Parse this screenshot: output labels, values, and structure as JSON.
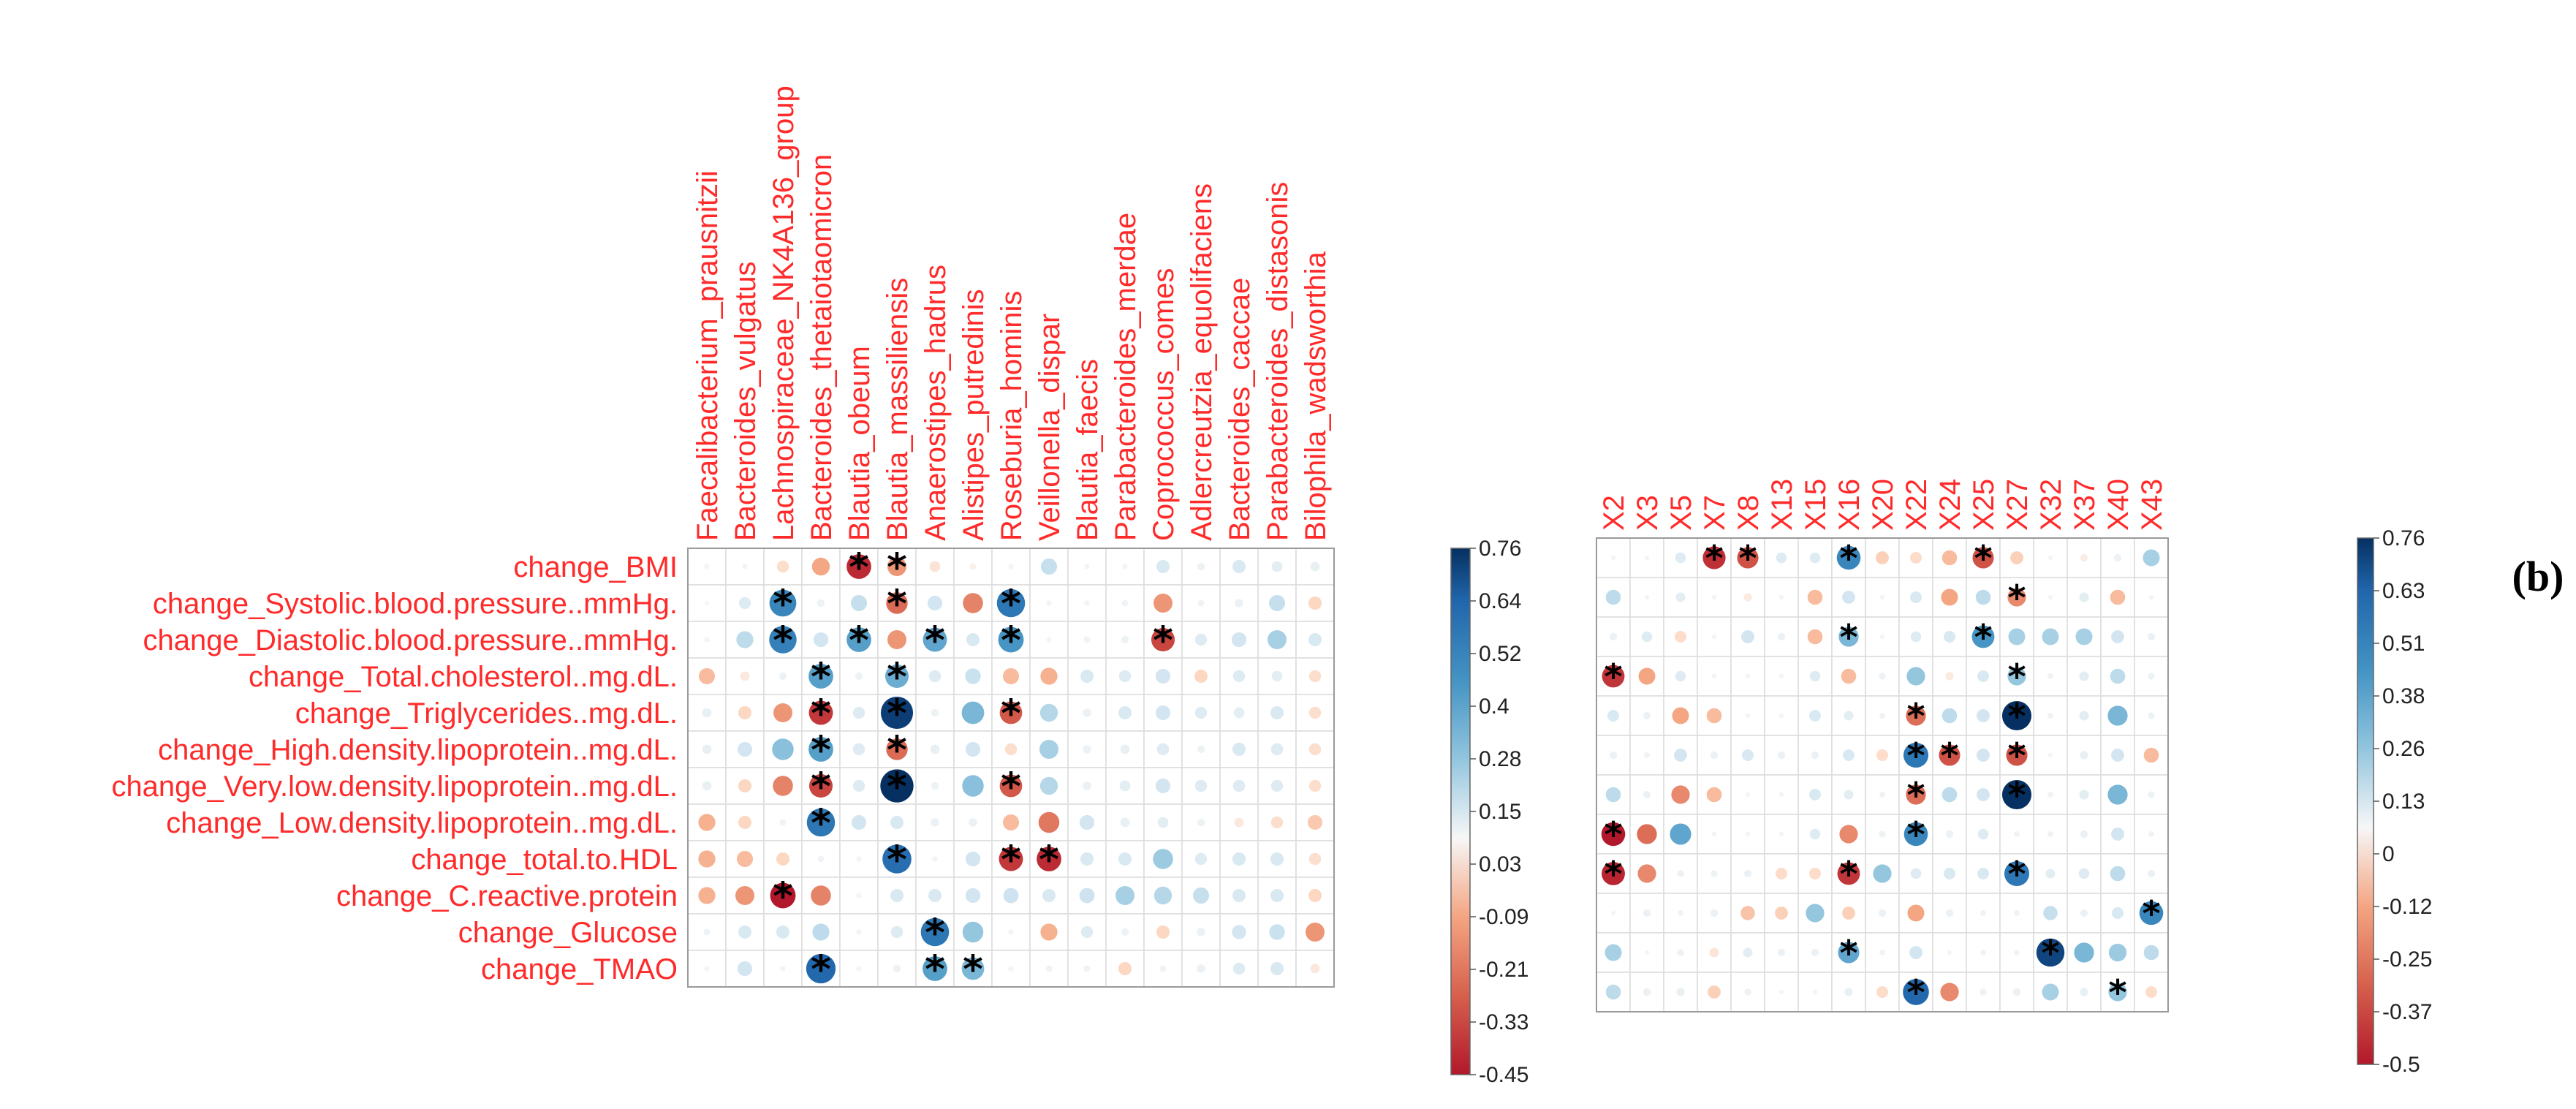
{
  "chart_data": [
    {
      "type": "heatmap",
      "subtype": "correlation-circle-matrix",
      "panel_label": "",
      "rows": [
        "change_BMI",
        "change_Systolic.blood.pressure..mmHg.",
        "change_Diastolic.blood.pressure..mmHg.",
        "change_Total.cholesterol..mg.dL.",
        "change_Triglycerides..mg.dL.",
        "change_High.density.lipoprotein..mg.dL.",
        "change_Very.low.density.lipoprotein..mg.dL.",
        "change_Low.density.lipoprotein..mg.dL.",
        "change_total.to.HDL",
        "change_C.reactive.protein",
        "change_Glucose",
        "change_TMAO"
      ],
      "columns": [
        "Faecalibacterium_prausnitzii",
        "Bacteroides_vulgatus",
        "Lachnospiraceae_NK4A136_group",
        "Bacteroides_thetaiotaomicron",
        "Blautia_obeum",
        "Blautia_massiliensis",
        "Anaerostipes_hadrus",
        "Alistipes_putredinis",
        "Roseburia_hominis",
        "Veillonella_dispar",
        "Blautia_faecis",
        "Parabacteroides_merdae",
        "Coprococcus_comes",
        "Adlercreutzia_equolifaciens",
        "Bacteroides_caccae",
        "Parabacteroides_distasonis",
        "Bilophila_wadsworthia"
      ],
      "values": [
        [
          0.02,
          0.02,
          -0.1,
          -0.22,
          -0.42,
          -0.25,
          -0.08,
          -0.03,
          0.02,
          0.18,
          0.02,
          0.02,
          0.12,
          0.04,
          0.12,
          0.08,
          0.06
        ],
        [
          0.01,
          0.1,
          0.5,
          0.04,
          0.18,
          -0.32,
          0.15,
          -0.28,
          0.55,
          0.02,
          0.02,
          0.03,
          -0.25,
          0.03,
          0.05,
          0.18,
          -0.12
        ],
        [
          0.02,
          0.2,
          0.52,
          0.15,
          0.42,
          -0.25,
          0.4,
          0.12,
          0.45,
          0.02,
          0.03,
          0.04,
          -0.38,
          0.1,
          0.15,
          0.25,
          0.12
        ],
        [
          -0.18,
          -0.06,
          0.04,
          0.42,
          0.04,
          0.38,
          0.1,
          0.17,
          -0.18,
          -0.2,
          0.12,
          0.1,
          0.15,
          -0.12,
          0.1,
          0.08,
          -0.1
        ],
        [
          0.06,
          -0.12,
          -0.25,
          -0.4,
          0.1,
          0.72,
          0.04,
          0.35,
          -0.35,
          0.22,
          0.05,
          0.12,
          0.15,
          0.1,
          0.08,
          0.12,
          -0.1
        ],
        [
          0.06,
          0.15,
          0.32,
          0.42,
          0.1,
          -0.32,
          0.06,
          0.15,
          -0.1,
          0.25,
          0.05,
          0.06,
          0.1,
          0.04,
          0.12,
          0.1,
          -0.1
        ],
        [
          0.06,
          -0.12,
          -0.28,
          -0.38,
          0.1,
          0.76,
          0.04,
          0.32,
          -0.35,
          0.22,
          0.05,
          0.08,
          0.15,
          0.1,
          0.1,
          0.1,
          -0.1
        ],
        [
          -0.2,
          -0.12,
          0.03,
          0.55,
          0.15,
          0.12,
          0.05,
          0.05,
          -0.18,
          -0.3,
          0.15,
          0.06,
          0.08,
          0.04,
          -0.06,
          -0.1,
          -0.15
        ],
        [
          -0.2,
          -0.18,
          -0.12,
          0.03,
          0.02,
          0.58,
          0.02,
          0.15,
          -0.4,
          -0.42,
          0.12,
          0.12,
          0.28,
          0.1,
          0.12,
          0.12,
          -0.1
        ],
        [
          -0.2,
          -0.25,
          -0.45,
          -0.28,
          0.02,
          0.12,
          0.12,
          0.15,
          0.16,
          0.12,
          0.16,
          0.25,
          0.22,
          0.18,
          0.12,
          0.12,
          -0.12
        ],
        [
          0.03,
          0.12,
          0.12,
          0.2,
          0.02,
          0.1,
          0.55,
          0.3,
          0.02,
          -0.2,
          0.1,
          0.04,
          -0.12,
          0.05,
          0.14,
          0.17,
          -0.25
        ],
        [
          0.02,
          0.15,
          0.02,
          0.6,
          0.02,
          0.04,
          0.42,
          0.35,
          0.02,
          0.03,
          0.03,
          -0.12,
          0.03,
          0.05,
          0.1,
          0.12,
          -0.06
        ]
      ],
      "significant": [
        [
          4,
          0
        ],
        [
          5,
          0
        ],
        [
          2,
          1
        ],
        [
          5,
          1
        ],
        [
          8,
          1
        ],
        [
          2,
          2
        ],
        [
          4,
          2
        ],
        [
          6,
          2
        ],
        [
          8,
          2
        ],
        [
          12,
          2
        ],
        [
          3,
          3
        ],
        [
          5,
          3
        ],
        [
          3,
          4
        ],
        [
          5,
          4
        ],
        [
          8,
          4
        ],
        [
          3,
          5
        ],
        [
          5,
          5
        ],
        [
          3,
          6
        ],
        [
          5,
          6
        ],
        [
          8,
          6
        ],
        [
          3,
          7
        ],
        [
          5,
          8
        ],
        [
          8,
          8
        ],
        [
          9,
          8
        ],
        [
          2,
          9
        ],
        [
          6,
          10
        ],
        [
          3,
          11
        ],
        [
          6,
          11
        ],
        [
          7,
          11
        ]
      ],
      "colorbar": {
        "min": -0.45,
        "max": 0.76,
        "ticks": [
          "0.76",
          "0.64",
          "0.52",
          "0.4",
          "0.28",
          "0.15",
          "0.03",
          "-0.09",
          "-0.21",
          "-0.33",
          "-0.45"
        ]
      },
      "colors": {
        "negative": "#b2182b",
        "neutral": "#ffffff",
        "positive": "#053061"
      }
    },
    {
      "type": "heatmap",
      "subtype": "correlation-circle-matrix",
      "panel_label": "(b)",
      "rows": [
        "change_BMI",
        "change_Systolic.blood.pressure..mmHg.",
        "change_Diastolic.blood.pressure..mmHg.",
        "change_Total.cholesterol..mg.dL.",
        "change_Triglycerides..mg.dL.",
        "change_High.density.lipoprotein..mg.dL.",
        "change_Very.low.density.lipoprotein..mg.dL.",
        "change_Low.density.lipoprotein..mg.dL.",
        "change_total.to.HDL",
        "change_C.reactive.protein",
        "change_Glucose",
        "change_TMAO"
      ],
      "columns": [
        "X2",
        "X3",
        "X5",
        "X7",
        "X8",
        "X13",
        "X15",
        "X16",
        "X20",
        "X22",
        "X24",
        "X25",
        "X27",
        "X32",
        "X37",
        "X40",
        "X43"
      ],
      "values": [
        [
          0.02,
          0.02,
          0.1,
          -0.46,
          -0.4,
          0.1,
          0.1,
          0.5,
          -0.15,
          -0.12,
          -0.2,
          -0.4,
          -0.15,
          0.02,
          -0.05,
          0.05,
          0.25
        ],
        [
          0.2,
          0.02,
          0.08,
          0.02,
          -0.06,
          0.02,
          -0.2,
          0.15,
          0.02,
          0.12,
          -0.25,
          0.2,
          -0.3,
          0.02,
          0.08,
          -0.2,
          0.02
        ],
        [
          0.05,
          0.1,
          -0.12,
          0.02,
          0.15,
          0.05,
          -0.2,
          0.35,
          0.02,
          0.1,
          0.12,
          0.45,
          0.25,
          0.25,
          0.25,
          0.15,
          0.05
        ],
        [
          -0.45,
          -0.25,
          0.1,
          0.02,
          0.02,
          0.02,
          0.1,
          -0.2,
          0.04,
          0.3,
          -0.06,
          0.12,
          0.3,
          0.03,
          0.08,
          0.2,
          0.04
        ],
        [
          0.12,
          0.05,
          -0.25,
          -0.2,
          0.02,
          0.02,
          0.12,
          0.08,
          0.03,
          -0.35,
          0.2,
          0.15,
          0.76,
          0.03,
          0.08,
          0.35,
          0.04
        ],
        [
          0.05,
          0.03,
          0.15,
          0.05,
          0.12,
          0.05,
          0.05,
          0.12,
          -0.12,
          0.55,
          -0.4,
          0.15,
          -0.4,
          0.02,
          0.06,
          0.15,
          -0.2
        ],
        [
          0.2,
          0.05,
          -0.3,
          -0.2,
          0.02,
          0.02,
          0.12,
          0.08,
          0.03,
          -0.35,
          0.2,
          0.15,
          0.76,
          0.03,
          0.08,
          0.35,
          0.04
        ],
        [
          -0.5,
          -0.35,
          0.4,
          0.02,
          0.02,
          0.02,
          0.1,
          -0.3,
          0.04,
          0.5,
          0.05,
          0.1,
          0.03,
          0.03,
          0.05,
          0.15,
          0.03
        ],
        [
          -0.48,
          -0.3,
          0.04,
          0.04,
          0.05,
          -0.12,
          -0.12,
          -0.45,
          0.3,
          0.1,
          0.12,
          0.12,
          0.55,
          0.08,
          0.1,
          0.2,
          0.05
        ],
        [
          0.02,
          0.05,
          0.03,
          0.05,
          -0.18,
          -0.15,
          0.3,
          -0.15,
          0.05,
          -0.25,
          0.05,
          0.03,
          0.03,
          0.18,
          0.05,
          0.12,
          0.5
        ],
        [
          0.25,
          0.02,
          0.04,
          -0.08,
          0.08,
          0.05,
          0.05,
          0.4,
          0.03,
          0.15,
          0.02,
          0.03,
          0.03,
          0.7,
          0.35,
          0.28,
          0.2
        ],
        [
          0.2,
          0.05,
          0.06,
          -0.15,
          0.04,
          0.02,
          0.02,
          0.06,
          -0.12,
          0.6,
          -0.3,
          0.04,
          0.05,
          0.25,
          0.06,
          0.3,
          -0.12
        ]
      ],
      "significant": [
        [
          3,
          0
        ],
        [
          4,
          0
        ],
        [
          7,
          0
        ],
        [
          11,
          0
        ],
        [
          12,
          1
        ],
        [
          7,
          2
        ],
        [
          11,
          2
        ],
        [
          0,
          3
        ],
        [
          12,
          3
        ],
        [
          12,
          4
        ],
        [
          9,
          4
        ],
        [
          9,
          5
        ],
        [
          10,
          5
        ],
        [
          12,
          5
        ],
        [
          9,
          6
        ],
        [
          12,
          6
        ],
        [
          0,
          7
        ],
        [
          9,
          7
        ],
        [
          0,
          8
        ],
        [
          7,
          8
        ],
        [
          12,
          8
        ],
        [
          16,
          9
        ],
        [
          7,
          10
        ],
        [
          13,
          10
        ],
        [
          9,
          11
        ],
        [
          15,
          11
        ]
      ],
      "colorbar": {
        "min": -0.5,
        "max": 0.76,
        "ticks": [
          "0.76",
          "0.63",
          "0.51",
          "0.38",
          "0.26",
          "0.13",
          "0",
          "-0.12",
          "-0.25",
          "-0.37",
          "-0.5"
        ]
      },
      "colors": {
        "negative": "#b2182b",
        "neutral": "#ffffff",
        "positive": "#053061"
      }
    }
  ]
}
